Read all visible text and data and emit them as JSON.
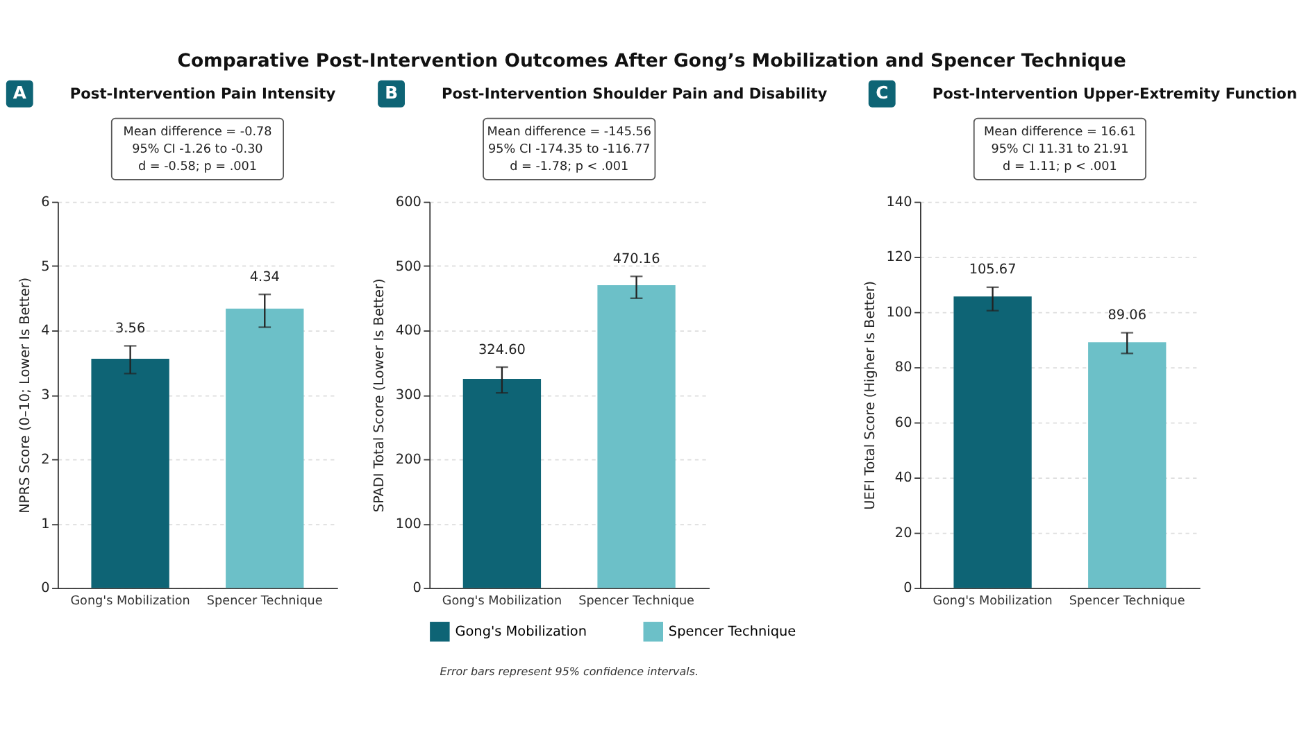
{
  "chart_data": [
    {
      "type": "bar",
      "title": "Post-Intervention Pain Intensity",
      "ylabel": "NPRS Score (0–10; Lower Is Better)",
      "categories": [
        "Gong's Mobilization",
        "Spencer Technique"
      ],
      "ylim": [
        0,
        6
      ],
      "yticks": [
        0,
        1,
        2,
        3,
        4,
        5,
        6
      ],
      "grid": "y",
      "series": [
        {
          "color": "#0e6475",
          "values": [
            3.56,
            null
          ],
          "errors": [
            [
              3.33,
              3.76
            ],
            null
          ],
          "value_labels": [
            "3.56",
            null
          ]
        },
        {
          "color": "#6cc0c8",
          "values": [
            null,
            4.34
          ],
          "errors": [
            null,
            [
              4.05,
              4.56
            ]
          ],
          "value_labels": [
            null,
            "4.34"
          ]
        }
      ],
      "annotations": [
        "A",
        "Mean difference = -0.78",
        "95% CI -1.26 to -0.30",
        "d = -0.58; p = .001",
        "Comparative Post-Intervention Outcomes After Gong’s Mobilization and Spencer Technique"
      ]
    },
    {
      "type": "bar",
      "title": "Post-Intervention Shoulder Pain and Disability",
      "ylabel": "SPADI Total Score (Lower Is Better)",
      "categories": [
        "Gong's Mobilization",
        "Spencer Technique"
      ],
      "ylim": [
        0,
        600
      ],
      "yticks": [
        0,
        100,
        200,
        300,
        400,
        500,
        600
      ],
      "grid": "y",
      "legend": "bottom",
      "series": [
        {
          "name": "Gong's Mobilization",
          "color": "#0e6475",
          "values": [
            324.6,
            null
          ],
          "errors": [
            [
              303,
              343
            ],
            null
          ],
          "value_labels": [
            "324.60",
            null
          ]
        },
        {
          "name": "Spencer Technique",
          "color": "#6cc0c8",
          "values": [
            null,
            470.16
          ],
          "errors": [
            null,
            [
              450,
              484
            ]
          ],
          "value_labels": [
            null,
            "470.16"
          ]
        }
      ],
      "annotations": [
        "B",
        "Mean difference = -145.56",
        "95% CI -174.35 to -116.77",
        "d = -1.78; p < .001",
        "Error bars represent 95% confidence intervals."
      ]
    },
    {
      "type": "bar",
      "title": "Post-Intervention Upper-Extremity Function",
      "ylabel": "UEFI Total Score (Higher Is Better)",
      "categories": [
        "Gong's Mobilization",
        "Spencer Technique"
      ],
      "ylim": [
        0,
        140
      ],
      "yticks": [
        0,
        20,
        40,
        60,
        80,
        100,
        120,
        140
      ],
      "grid": "y",
      "series": [
        {
          "color": "#0e6475",
          "values": [
            105.67,
            null
          ],
          "errors": [
            [
              100.5,
              109
            ],
            null
          ],
          "value_labels": [
            "105.67",
            null
          ]
        },
        {
          "color": "#6cc0c8",
          "values": [
            null,
            89.06
          ],
          "errors": [
            null,
            [
              85,
              92.5
            ]
          ],
          "value_labels": [
            null,
            "89.06"
          ]
        }
      ],
      "annotations": [
        "C",
        "Mean difference = 16.61",
        "95% CI 11.31 to 21.91",
        "d = 1.11; p < .001"
      ]
    }
  ]
}
